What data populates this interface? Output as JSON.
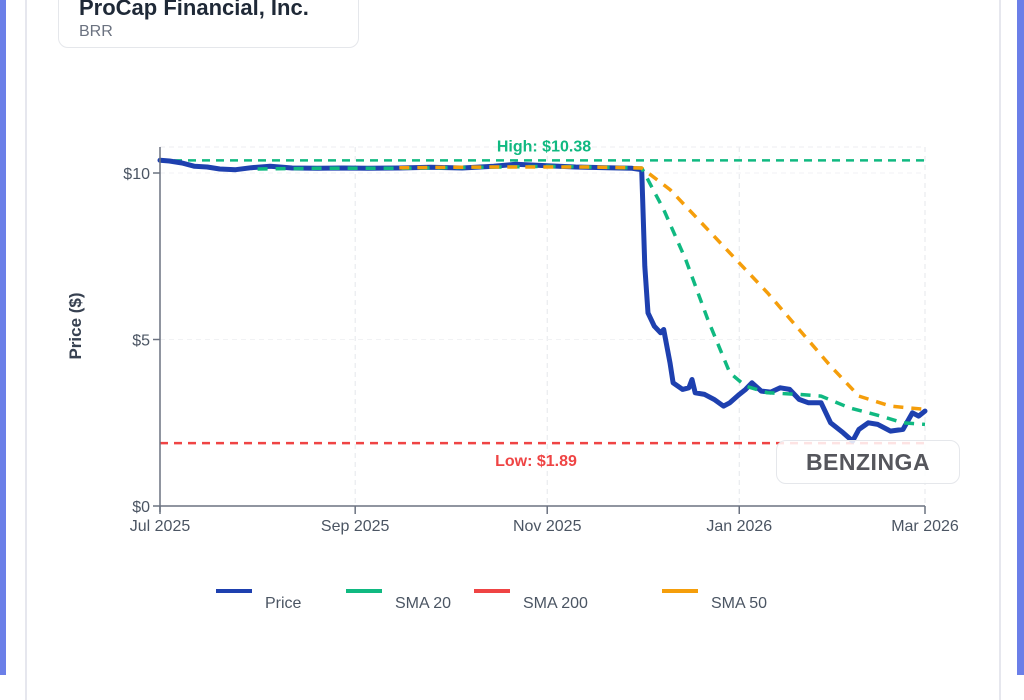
{
  "header": {
    "company": "ProCap Financial, Inc.",
    "ticker": "BRR"
  },
  "watermark": "BENZINGA",
  "colors": {
    "price": "#1e40af",
    "sma20": "#10b981",
    "sma200": "#ef4444",
    "sma50": "#f59e0b",
    "high": "#10b981",
    "low": "#ef4444",
    "frame": "#6b7fe8"
  },
  "chart_data": {
    "type": "line",
    "title": "",
    "xlabel": "",
    "ylabel": "Price ($)",
    "ylim": [
      0,
      10.6
    ],
    "xlim": [
      "2025-07-01",
      "2026-03-01"
    ],
    "y_ticks": [
      {
        "value": 0,
        "label": "$0"
      },
      {
        "value": 5,
        "label": "$5"
      },
      {
        "value": 10,
        "label": "$10"
      }
    ],
    "x_ticks": [
      {
        "date": "2025-07-01",
        "label": "Jul 2025"
      },
      {
        "date": "2025-09-01",
        "label": "Sep 2025"
      },
      {
        "date": "2025-11-01",
        "label": "Nov 2025"
      },
      {
        "date": "2026-01-01",
        "label": "Jan 2026"
      },
      {
        "date": "2026-03-01",
        "label": "Mar 2026"
      }
    ],
    "grid": true,
    "legend_position": "bottom",
    "annotations": [
      {
        "label": "High: $10.38",
        "value": 10.38,
        "series": "high"
      },
      {
        "label": "Low: $1.89",
        "value": 1.89,
        "series": "low"
      }
    ],
    "series": [
      {
        "name": "Price",
        "key": "price",
        "dash": false,
        "points": [
          [
            "2025-07-01",
            10.38
          ],
          [
            "2025-07-04",
            10.36
          ],
          [
            "2025-07-08",
            10.3
          ],
          [
            "2025-07-12",
            10.2
          ],
          [
            "2025-07-16",
            10.18
          ],
          [
            "2025-07-20",
            10.12
          ],
          [
            "2025-07-25",
            10.1
          ],
          [
            "2025-07-30",
            10.16
          ],
          [
            "2025-08-05",
            10.2
          ],
          [
            "2025-08-12",
            10.15
          ],
          [
            "2025-08-20",
            10.14
          ],
          [
            "2025-08-28",
            10.15
          ],
          [
            "2025-09-05",
            10.14
          ],
          [
            "2025-09-15",
            10.15
          ],
          [
            "2025-09-25",
            10.17
          ],
          [
            "2025-10-05",
            10.15
          ],
          [
            "2025-10-15",
            10.2
          ],
          [
            "2025-10-22",
            10.26
          ],
          [
            "2025-11-01",
            10.22
          ],
          [
            "2025-11-10",
            10.18
          ],
          [
            "2025-11-20",
            10.16
          ],
          [
            "2025-11-28",
            10.14
          ],
          [
            "2025-12-01",
            10.1
          ],
          [
            "2025-12-02",
            7.2
          ],
          [
            "2025-12-03",
            5.8
          ],
          [
            "2025-12-05",
            5.4
          ],
          [
            "2025-12-07",
            5.2
          ],
          [
            "2025-12-08",
            5.3
          ],
          [
            "2025-12-10",
            4.3
          ],
          [
            "2025-12-11",
            3.7
          ],
          [
            "2025-12-14",
            3.5
          ],
          [
            "2025-12-16",
            3.55
          ],
          [
            "2025-12-17",
            3.8
          ],
          [
            "2025-12-18",
            3.4
          ],
          [
            "2025-12-21",
            3.35
          ],
          [
            "2025-12-24",
            3.2
          ],
          [
            "2025-12-27",
            3.0
          ],
          [
            "2025-12-29",
            3.1
          ],
          [
            "2026-01-01",
            3.35
          ],
          [
            "2026-01-03",
            3.5
          ],
          [
            "2026-01-05",
            3.7
          ],
          [
            "2026-01-08",
            3.45
          ],
          [
            "2026-01-11",
            3.42
          ],
          [
            "2026-01-14",
            3.55
          ],
          [
            "2026-01-17",
            3.5
          ],
          [
            "2026-01-20",
            3.2
          ],
          [
            "2026-01-23",
            3.1
          ],
          [
            "2026-01-27",
            3.1
          ],
          [
            "2026-01-30",
            2.5
          ],
          [
            "2026-02-03",
            2.2
          ],
          [
            "2026-02-06",
            1.95
          ],
          [
            "2026-02-08",
            2.3
          ],
          [
            "2026-02-11",
            2.5
          ],
          [
            "2026-02-14",
            2.45
          ],
          [
            "2026-02-18",
            2.25
          ],
          [
            "2026-02-22",
            2.3
          ],
          [
            "2026-02-25",
            2.8
          ],
          [
            "2026-02-27",
            2.7
          ],
          [
            "2026-03-01",
            2.85
          ]
        ]
      },
      {
        "name": "SMA 20",
        "key": "sma20",
        "dash": true,
        "points": [
          [
            "2025-08-01",
            10.12
          ],
          [
            "2025-08-20",
            10.14
          ],
          [
            "2025-09-15",
            10.14
          ],
          [
            "2025-10-10",
            10.17
          ],
          [
            "2025-11-01",
            10.2
          ],
          [
            "2025-12-01",
            10.15
          ],
          [
            "2025-12-08",
            8.9
          ],
          [
            "2025-12-15",
            7.4
          ],
          [
            "2025-12-22",
            5.6
          ],
          [
            "2025-12-29",
            4.0
          ],
          [
            "2026-01-03",
            3.6
          ],
          [
            "2026-01-10",
            3.4
          ],
          [
            "2026-01-20",
            3.35
          ],
          [
            "2026-01-27",
            3.3
          ],
          [
            "2026-02-05",
            2.95
          ],
          [
            "2026-02-15",
            2.7
          ],
          [
            "2026-02-22",
            2.5
          ],
          [
            "2026-03-01",
            2.45
          ]
        ]
      },
      {
        "name": "SMA 200",
        "key": "sma200",
        "dash": true,
        "points": []
      },
      {
        "name": "SMA 50",
        "key": "sma50",
        "dash": true,
        "points": [
          [
            "2025-09-15",
            10.16
          ],
          [
            "2025-10-15",
            10.18
          ],
          [
            "2025-11-15",
            10.18
          ],
          [
            "2025-12-01",
            10.15
          ],
          [
            "2025-12-10",
            9.5
          ],
          [
            "2025-12-20",
            8.5
          ],
          [
            "2025-12-31",
            7.4
          ],
          [
            "2026-01-10",
            6.4
          ],
          [
            "2026-01-20",
            5.3
          ],
          [
            "2026-01-30",
            4.2
          ],
          [
            "2026-02-08",
            3.3
          ],
          [
            "2026-02-18",
            3.0
          ],
          [
            "2026-03-01",
            2.9
          ]
        ]
      }
    ],
    "legend": [
      {
        "label": "Price",
        "key": "price"
      },
      {
        "label": "SMA 20",
        "key": "sma20"
      },
      {
        "label": "SMA 200",
        "key": "sma200"
      },
      {
        "label": "SMA 50",
        "key": "sma50"
      }
    ]
  }
}
